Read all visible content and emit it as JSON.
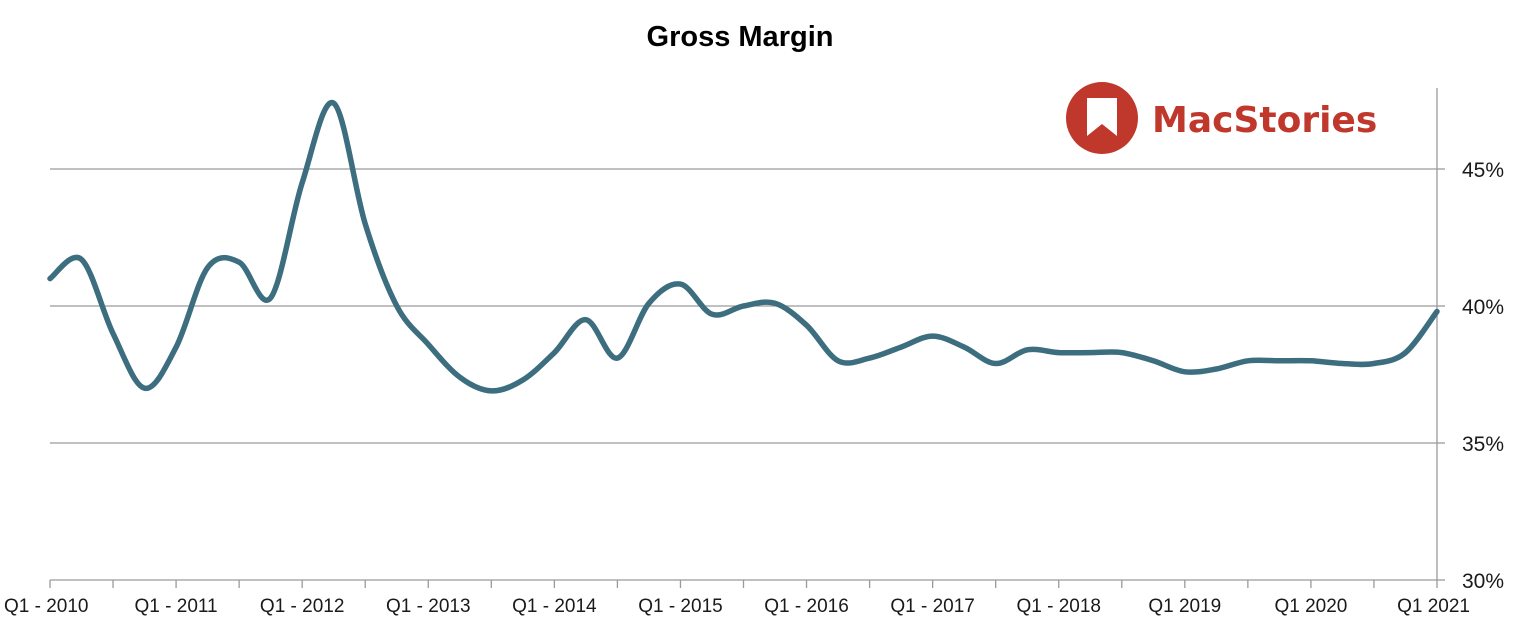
{
  "chart_data": {
    "type": "line",
    "title": "Gross Margin",
    "xlabel": "",
    "ylabel": "",
    "ylim": [
      30,
      48
    ],
    "y_ticks": [
      30,
      35,
      40,
      45
    ],
    "y_tick_labels": [
      "30%",
      "35%",
      "40%",
      "45%"
    ],
    "y_axis_side": "right",
    "grid": true,
    "x_tick_labels": [
      "Q1 - 2010",
      "Q1 - 2011",
      "Q1 - 2012",
      "Q1 - 2013",
      "Q1 - 2014",
      "Q1 - 2015",
      "Q1 - 2016",
      "Q1 - 2017",
      "Q1 - 2018",
      "Q1 2019",
      "Q1 2020",
      "Q1 2021"
    ],
    "series": [
      {
        "name": "Gross Margin",
        "color": "#3d6e7f",
        "x": [
          0,
          0.25,
          0.5,
          0.75,
          1,
          1.25,
          1.5,
          1.75,
          2,
          2.25,
          2.5,
          2.75,
          3,
          3.25,
          3.5,
          3.75,
          4,
          4.25,
          4.5,
          4.75,
          5,
          5.25,
          5.5,
          5.75,
          6,
          6.25,
          6.5,
          6.75,
          7,
          7.25,
          7.5,
          7.75,
          8,
          8.25,
          8.5,
          8.75,
          9,
          9.25,
          9.5,
          9.75,
          10,
          10.25,
          10.5,
          10.75,
          11
        ],
        "values": [
          41.0,
          41.7,
          39.0,
          37.0,
          38.5,
          41.4,
          41.6,
          40.3,
          44.5,
          47.4,
          43.0,
          40.0,
          38.6,
          37.4,
          36.9,
          37.3,
          38.3,
          39.5,
          38.1,
          40.1,
          40.8,
          39.7,
          40.0,
          40.1,
          39.3,
          38.0,
          38.1,
          38.5,
          38.9,
          38.5,
          37.9,
          38.4,
          38.3,
          38.3,
          38.3,
          38.0,
          37.6,
          37.7,
          38.0,
          38.0,
          38.0,
          37.9,
          37.9,
          38.3,
          39.8
        ]
      }
    ],
    "watermark": "MacStories"
  },
  "logo": {
    "text": "MacStories",
    "color": "#c0372c"
  }
}
